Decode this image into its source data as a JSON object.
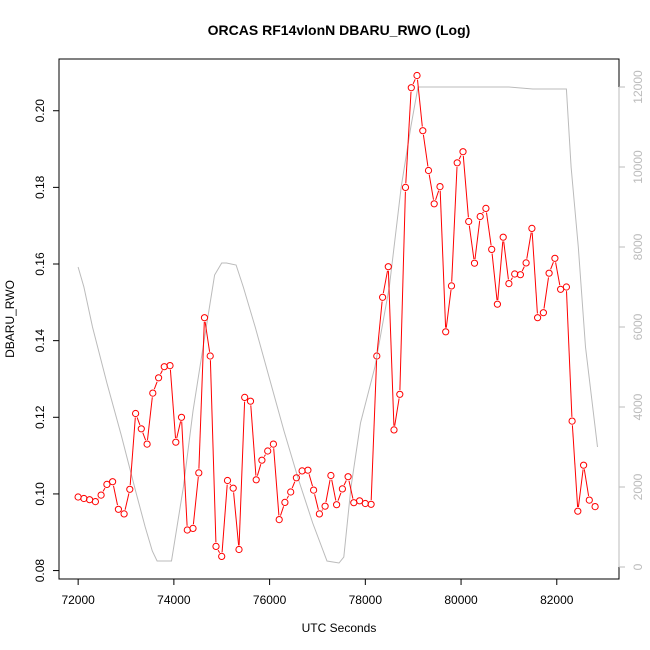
{
  "chart_data": {
    "type": "line",
    "title": "ORCAS RF14vlonN DBARU_RWO (Log)",
    "xlabel": "UTC Seconds",
    "ylabel": "DBARU_RWO",
    "xlim": [
      71600,
      83300
    ],
    "ylim": [
      0.0778,
      0.2135
    ],
    "y2lim": [
      -300,
      12700
    ],
    "x_ticks": [
      72000,
      74000,
      76000,
      78000,
      80000,
      82000
    ],
    "x_tick_labels": [
      "72000",
      "74000",
      "76000",
      "78000",
      "80000",
      "82000"
    ],
    "y_ticks": [
      0.08,
      0.1,
      0.12,
      0.14,
      0.16,
      0.18,
      0.2
    ],
    "y_tick_labels": [
      "0.08",
      "0.10",
      "0.12",
      "0.14",
      "0.16",
      "0.18",
      "0.20"
    ],
    "y2_ticks": [
      0,
      2000,
      4000,
      6000,
      8000,
      10000,
      12000
    ],
    "y2_tick_labels": [
      "0",
      "2000",
      "4000",
      "6000",
      "8000",
      "10000",
      "12000"
    ],
    "grid": false,
    "series": [
      {
        "color": "#ff0000",
        "marker": "open-circle",
        "axis": "left",
        "x": [
          72000,
          72120,
          72240,
          72360,
          72480,
          72600,
          72720,
          72840,
          72960,
          73080,
          73200,
          73320,
          73440,
          73560,
          73680,
          73800,
          73920,
          74040,
          74160,
          74280,
          74400,
          74520,
          74640,
          74760,
          74880,
          75000,
          75120,
          75240,
          75360,
          75480,
          75600,
          75720,
          75840,
          75960,
          76080,
          76200,
          76320,
          76440,
          76560,
          76680,
          76800,
          76920,
          77040,
          77160,
          77280,
          77400,
          77520,
          77640,
          77760,
          77880,
          78000,
          78120,
          78240,
          78360,
          78480,
          78600,
          78720,
          78840,
          78960,
          79080,
          79200,
          79320,
          79440,
          79560,
          79680,
          79800,
          79920,
          80040,
          80160,
          80280,
          80400,
          80520,
          80640,
          80760,
          80880,
          81000,
          81120,
          81240,
          81360,
          81480,
          81600,
          81720,
          81840,
          81960,
          82080,
          82200,
          82320,
          82440,
          82560,
          82680,
          82800
        ],
        "values": [
          0.0992,
          0.0988,
          0.0985,
          0.098,
          0.0997,
          0.1025,
          0.1032,
          0.096,
          0.0948,
          0.1012,
          0.121,
          0.117,
          0.113,
          0.1263,
          0.1303,
          0.1332,
          0.1335,
          0.1135,
          0.12,
          0.0906,
          0.091,
          0.1055,
          0.146,
          0.136,
          0.0863,
          0.0837,
          0.1035,
          0.1015,
          0.0855,
          0.1252,
          0.1242,
          0.1037,
          0.1088,
          0.1112,
          0.113,
          0.0933,
          0.0978,
          0.1005,
          0.1042,
          0.106,
          0.1062,
          0.101,
          0.0948,
          0.0968,
          0.1048,
          0.0972,
          0.1013,
          0.1045,
          0.0977,
          0.0982,
          0.0975,
          0.0973,
          0.136,
          0.1513,
          0.1593,
          0.1167,
          0.126,
          0.18,
          0.206,
          0.2092,
          0.1948,
          0.1844,
          0.1757,
          0.1802,
          0.1423,
          0.1543,
          0.1864,
          0.1893,
          0.1711,
          0.1602,
          0.1724,
          0.1745,
          0.1638,
          0.1495,
          0.167,
          0.1549,
          0.1574,
          0.1572,
          0.1603,
          0.1693,
          0.146,
          0.1473,
          0.1576,
          0.1615,
          0.1534,
          0.154,
          0.119,
          0.0955,
          0.1075,
          0.0984,
          0.0967
        ]
      },
      {
        "color": "#bbbbbb",
        "marker": "none",
        "axis": "right",
        "x": [
          72000,
          72120,
          72300,
          72600,
          72900,
          73200,
          73400,
          73550,
          73650,
          73750,
          73950,
          74200,
          74400,
          74650,
          74850,
          75000,
          75100,
          75300,
          75450,
          75700,
          76000,
          76300,
          76600,
          76900,
          77200,
          77450,
          77550,
          77700,
          77900,
          78200,
          78500,
          78750,
          78950,
          79100,
          79500,
          80000,
          80500,
          81000,
          81500,
          82000,
          82200,
          82300,
          82450,
          82600,
          82850
        ],
        "values": [
          7500,
          7000,
          6000,
          4600,
          3300,
          1900,
          1000,
          400,
          150,
          150,
          150,
          2000,
          3900,
          5800,
          7300,
          7600,
          7600,
          7550,
          7000,
          6000,
          4700,
          3400,
          2200,
          1100,
          150,
          100,
          250,
          2000,
          3600,
          5000,
          7000,
          9500,
          11000,
          12000,
          12000,
          12000,
          12000,
          12000,
          11950,
          11950,
          11950,
          10000,
          8000,
          5500,
          3000
        ]
      }
    ]
  }
}
